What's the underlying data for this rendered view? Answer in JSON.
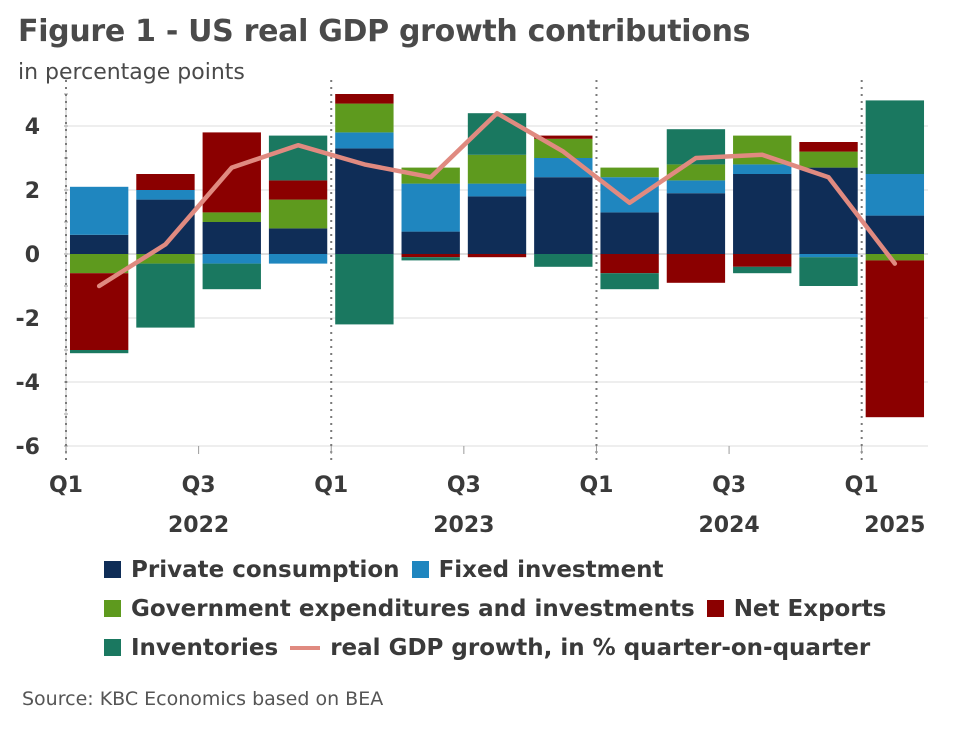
{
  "title": "Figure 1 - US real GDP growth contributions",
  "subtitle": "in percentage points",
  "source": "Source: KBC Economics based on BEA",
  "colors": {
    "private_consumption": "#0f2d57",
    "fixed_investment": "#1f86bf",
    "government": "#5e9a1e",
    "net_exports": "#8b0000",
    "inventories": "#1a7860",
    "gdp_line": "#e08a80"
  },
  "legend": [
    {
      "key": "private_consumption",
      "label": "Private consumption",
      "kind": "box"
    },
    {
      "key": "fixed_investment",
      "label": "Fixed investment",
      "kind": "box"
    },
    {
      "key": "government",
      "label": "Government expenditures and investments",
      "kind": "box"
    },
    {
      "key": "net_exports",
      "label": "Net Exports",
      "kind": "box"
    },
    {
      "key": "inventories",
      "label": "Inventories",
      "kind": "box"
    },
    {
      "key": "gdp_line",
      "label": "real GDP growth, in % quarter-on-quarter",
      "kind": "line"
    }
  ],
  "chart_data": {
    "type": "bar",
    "stacked": true,
    "categories": [
      "2022 Q1",
      "2022 Q2",
      "2022 Q3",
      "2022 Q4",
      "2023 Q1",
      "2023 Q2",
      "2023 Q3",
      "2023 Q4",
      "2024 Q1",
      "2024 Q2",
      "2024 Q3",
      "2024 Q4",
      "2025 Q1"
    ],
    "quarter_tick_labels": [
      "Q1",
      "Q3",
      "Q1",
      "Q3",
      "Q1",
      "Q3",
      "Q1"
    ],
    "year_labels": [
      "2022",
      "2023",
      "2024",
      "2025"
    ],
    "ylim": [
      -6,
      5
    ],
    "yticks": [
      -6,
      -4,
      -2,
      0,
      2,
      4
    ],
    "grid": true,
    "series": [
      {
        "key": "private_consumption",
        "name": "Private consumption",
        "values": [
          0.6,
          1.7,
          1.0,
          0.8,
          3.3,
          0.7,
          1.8,
          2.4,
          1.3,
          1.9,
          2.5,
          2.7,
          1.2
        ]
      },
      {
        "key": "fixed_investment",
        "name": "Fixed investment",
        "values": [
          1.5,
          0.3,
          -0.3,
          -0.3,
          0.5,
          1.5,
          0.4,
          0.6,
          1.1,
          0.4,
          0.3,
          -0.1,
          1.3
        ]
      },
      {
        "key": "government",
        "name": "Government expenditures and investments",
        "values": [
          -0.6,
          -0.3,
          0.3,
          0.9,
          0.9,
          0.5,
          0.9,
          0.6,
          0.3,
          0.5,
          0.9,
          0.5,
          -0.2
        ]
      },
      {
        "key": "net_exports",
        "name": "Net Exports",
        "values": [
          -2.4,
          0.5,
          2.5,
          0.6,
          0.3,
          -0.1,
          -0.1,
          0.1,
          -0.6,
          -0.9,
          -0.4,
          0.3,
          -4.9
        ]
      },
      {
        "key": "inventories",
        "name": "Inventories",
        "values": [
          -0.1,
          -2.0,
          -0.8,
          1.4,
          -2.2,
          -0.1,
          1.3,
          -0.4,
          -0.5,
          1.1,
          -0.2,
          -0.9,
          2.3
        ]
      }
    ],
    "line": {
      "key": "gdp_line",
      "name": "real GDP growth, in % quarter-on-quarter",
      "values": [
        -1.0,
        0.3,
        2.7,
        3.4,
        2.8,
        2.4,
        4.4,
        3.2,
        1.6,
        3.0,
        3.1,
        2.4,
        -0.3
      ]
    }
  }
}
